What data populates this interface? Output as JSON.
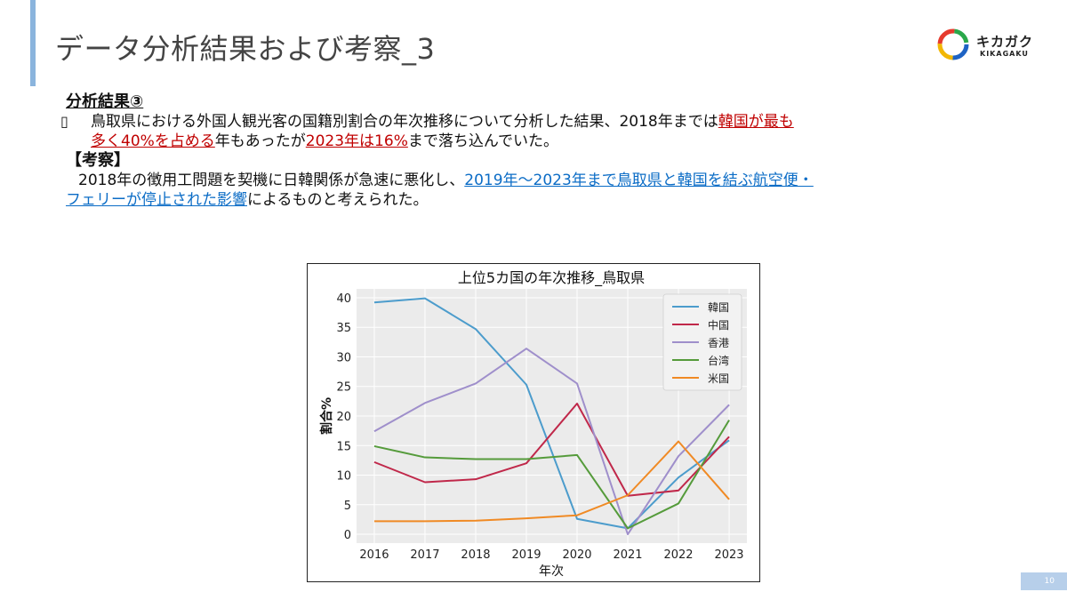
{
  "slide": {
    "title": "データ分析結果および考察_3",
    "page_number": "10"
  },
  "logo": {
    "name": "キカガク",
    "sub": "KIKAGAKU"
  },
  "content": {
    "heading": "分析結果③",
    "bullet_icon": "box-bullet-icon",
    "bullet": {
      "t1": "鳥取県における外国人観光客の国籍別割合の年次推移について分析した結果、2018年までは",
      "h1a": "韓国が最も",
      "h1b": "多く40%を占める",
      "t2": "年もあったが",
      "h2": "2023年は16%",
      "t3": "まで落ち込んでいた。"
    },
    "consideration_heading": "【考察】",
    "consideration": {
      "t1": "2018年の徴用工問題を契機に日韓関係が急速に悪化し、",
      "h1a": "2019年～2023年まで鳥取県と韓国を結ぶ航空便・",
      "h1b": "フェリーが停止された影響",
      "t2": "によるものと考えられた。"
    }
  },
  "chart_data": {
    "type": "line",
    "title": "上位5カ国の年次推移_鳥取県",
    "xlabel": "年次",
    "ylabel": "割合%",
    "x": [
      2016,
      2017,
      2018,
      2019,
      2020,
      2021,
      2022,
      2023
    ],
    "ylim": [
      -1.5,
      41.5
    ],
    "yticks": [
      0,
      5,
      10,
      15,
      20,
      25,
      30,
      35,
      40
    ],
    "grid": true,
    "legend_position": "top-right",
    "series": [
      {
        "name": "韓国",
        "color": "#4c9ccc",
        "values": [
          39.2,
          39.9,
          34.7,
          25.3,
          2.6,
          1.0,
          9.6,
          15.9
        ]
      },
      {
        "name": "中国",
        "color": "#c0284a",
        "values": [
          12.2,
          8.8,
          9.3,
          12.0,
          22.1,
          6.5,
          7.4,
          16.5
        ]
      },
      {
        "name": "香港",
        "color": "#9f8fcb",
        "values": [
          17.4,
          22.2,
          25.5,
          31.4,
          25.5,
          0.0,
          13.2,
          21.9
        ]
      },
      {
        "name": "台湾",
        "color": "#559b3b",
        "values": [
          14.9,
          13.0,
          12.7,
          12.7,
          13.4,
          1.0,
          5.2,
          19.3
        ]
      },
      {
        "name": "米国",
        "color": "#f08a24",
        "values": [
          2.2,
          2.2,
          2.3,
          2.7,
          3.2,
          6.6,
          15.7,
          5.9
        ]
      }
    ]
  }
}
